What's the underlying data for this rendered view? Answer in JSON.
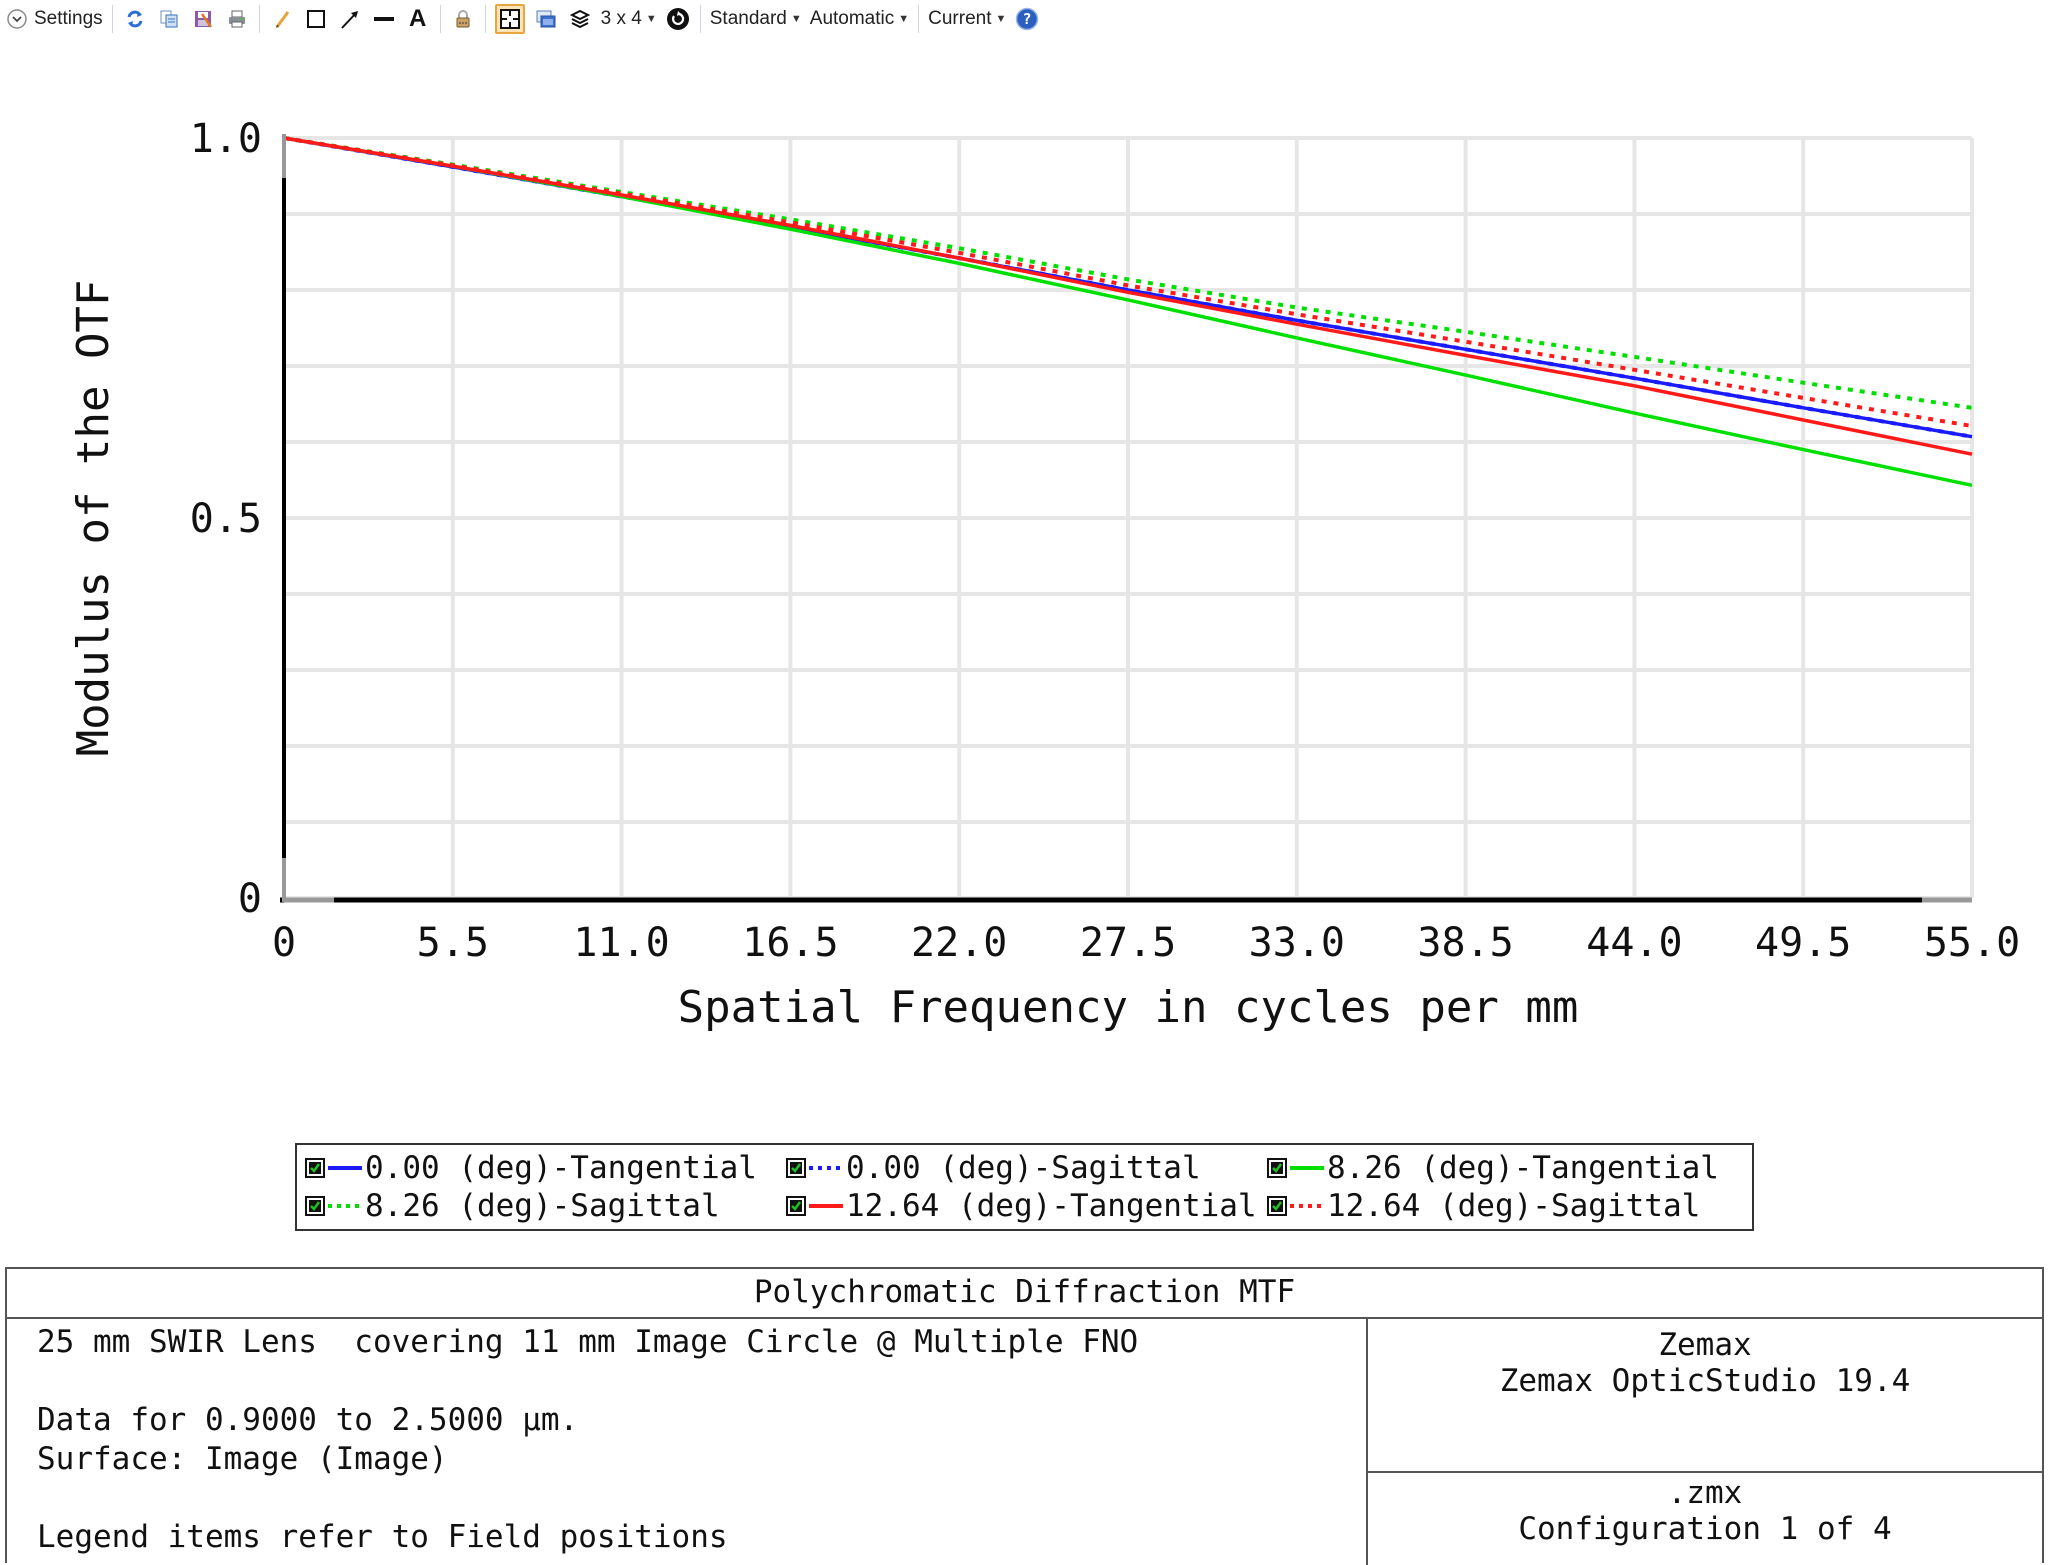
{
  "toolbar": {
    "settings_label": "Settings",
    "layout_label": "3 x 4",
    "standard_label": "Standard",
    "automatic_label": "Automatic",
    "current_label": "Current",
    "icons": [
      "chevron-down-icon",
      "refresh-icon",
      "copy-icon",
      "save-icon",
      "print-icon",
      "pencil-icon",
      "rectangle-icon",
      "arrow-icon",
      "line-icon",
      "text-icon",
      "lock-icon",
      "fit-frame-icon",
      "window-icon",
      "layers-icon",
      "rotate-icon",
      "help-icon"
    ]
  },
  "colors": {
    "blue": "#1a1aff",
    "green": "#00e000",
    "red": "#ff1a1a",
    "grid": "#e6e6e6",
    "axis": "#000000",
    "highlight": "#e8a640"
  },
  "chart_data": {
    "type": "line",
    "title": "Polychromatic Diffraction MTF",
    "xlabel": "Spatial Frequency in cycles per mm",
    "ylabel": "Modulus of the OTF",
    "xlim": [
      0,
      55
    ],
    "ylim": [
      0,
      1
    ],
    "x_ticks": [
      "0",
      "5.5",
      "11.0",
      "16.5",
      "22.0",
      "27.5",
      "33.0",
      "38.5",
      "44.0",
      "49.5",
      "55.0"
    ],
    "y_ticks": [
      "0",
      "0.5",
      "1.0"
    ],
    "grid": true,
    "legend_position": "bottom",
    "x": [
      0,
      5.5,
      11.0,
      16.5,
      22.0,
      27.5,
      33.0,
      38.5,
      44.0,
      49.5,
      55.0
    ],
    "series": [
      {
        "name": "0.00 (deg)-Tangential",
        "color": "#1a1aff",
        "style": "solid",
        "values": [
          1.0,
          0.962,
          0.923,
          0.883,
          0.842,
          0.8,
          0.76,
          0.722,
          0.684,
          0.645,
          0.607
        ]
      },
      {
        "name": "0.00 (deg)-Sagittal",
        "color": "#1a1aff",
        "style": "dotted",
        "values": [
          1.0,
          0.962,
          0.923,
          0.883,
          0.842,
          0.8,
          0.76,
          0.722,
          0.684,
          0.645,
          0.607
        ]
      },
      {
        "name": "8.26 (deg)-Tangential",
        "color": "#00e000",
        "style": "solid",
        "values": [
          1.0,
          0.963,
          0.923,
          0.88,
          0.835,
          0.787,
          0.737,
          0.688,
          0.638,
          0.59,
          0.543
        ]
      },
      {
        "name": "8.26 (deg)-Sagittal",
        "color": "#00e000",
        "style": "dotted",
        "values": [
          1.0,
          0.965,
          0.929,
          0.893,
          0.855,
          0.814,
          0.777,
          0.745,
          0.712,
          0.678,
          0.645
        ]
      },
      {
        "name": "12.64 (deg)-Tangential",
        "color": "#ff1a1a",
        "style": "solid",
        "values": [
          1.0,
          0.963,
          0.925,
          0.885,
          0.842,
          0.797,
          0.755,
          0.714,
          0.674,
          0.629,
          0.584
        ]
      },
      {
        "name": "12.64 (deg)-Sagittal",
        "color": "#ff1a1a",
        "style": "dotted",
        "values": [
          1.0,
          0.964,
          0.927,
          0.889,
          0.849,
          0.806,
          0.768,
          0.732,
          0.695,
          0.658,
          0.621
        ]
      }
    ]
  },
  "legend": {
    "items": [
      {
        "label": "0.00 (deg)-Tangential",
        "color": "#1a1aff",
        "style": "solid"
      },
      {
        "label": "0.00 (deg)-Sagittal",
        "color": "#1a1aff",
        "style": "dotted"
      },
      {
        "label": "8.26 (deg)-Tangential",
        "color": "#00e000",
        "style": "solid"
      },
      {
        "label": "8.26 (deg)-Sagittal",
        "color": "#00e000",
        "style": "dotted"
      },
      {
        "label": "12.64 (deg)-Tangential",
        "color": "#ff1a1a",
        "style": "solid"
      },
      {
        "label": "12.64 (deg)-Sagittal",
        "color": "#ff1a1a",
        "style": "dotted"
      }
    ]
  },
  "footer": {
    "title": "Polychromatic Diffraction MTF",
    "left_lines": [
      "25 mm SWIR Lens  covering 11 mm Image Circle @ Multiple FNO",
      "",
      "Data for 0.9000 to 2.5000 µm.",
      "Surface: Image (Image)",
      "",
      "Legend items refer to Field positions"
    ],
    "company": "Zemax",
    "product": "Zemax OpticStudio 19.4",
    "file": ".zmx",
    "configuration": "Configuration 1 of 4"
  }
}
